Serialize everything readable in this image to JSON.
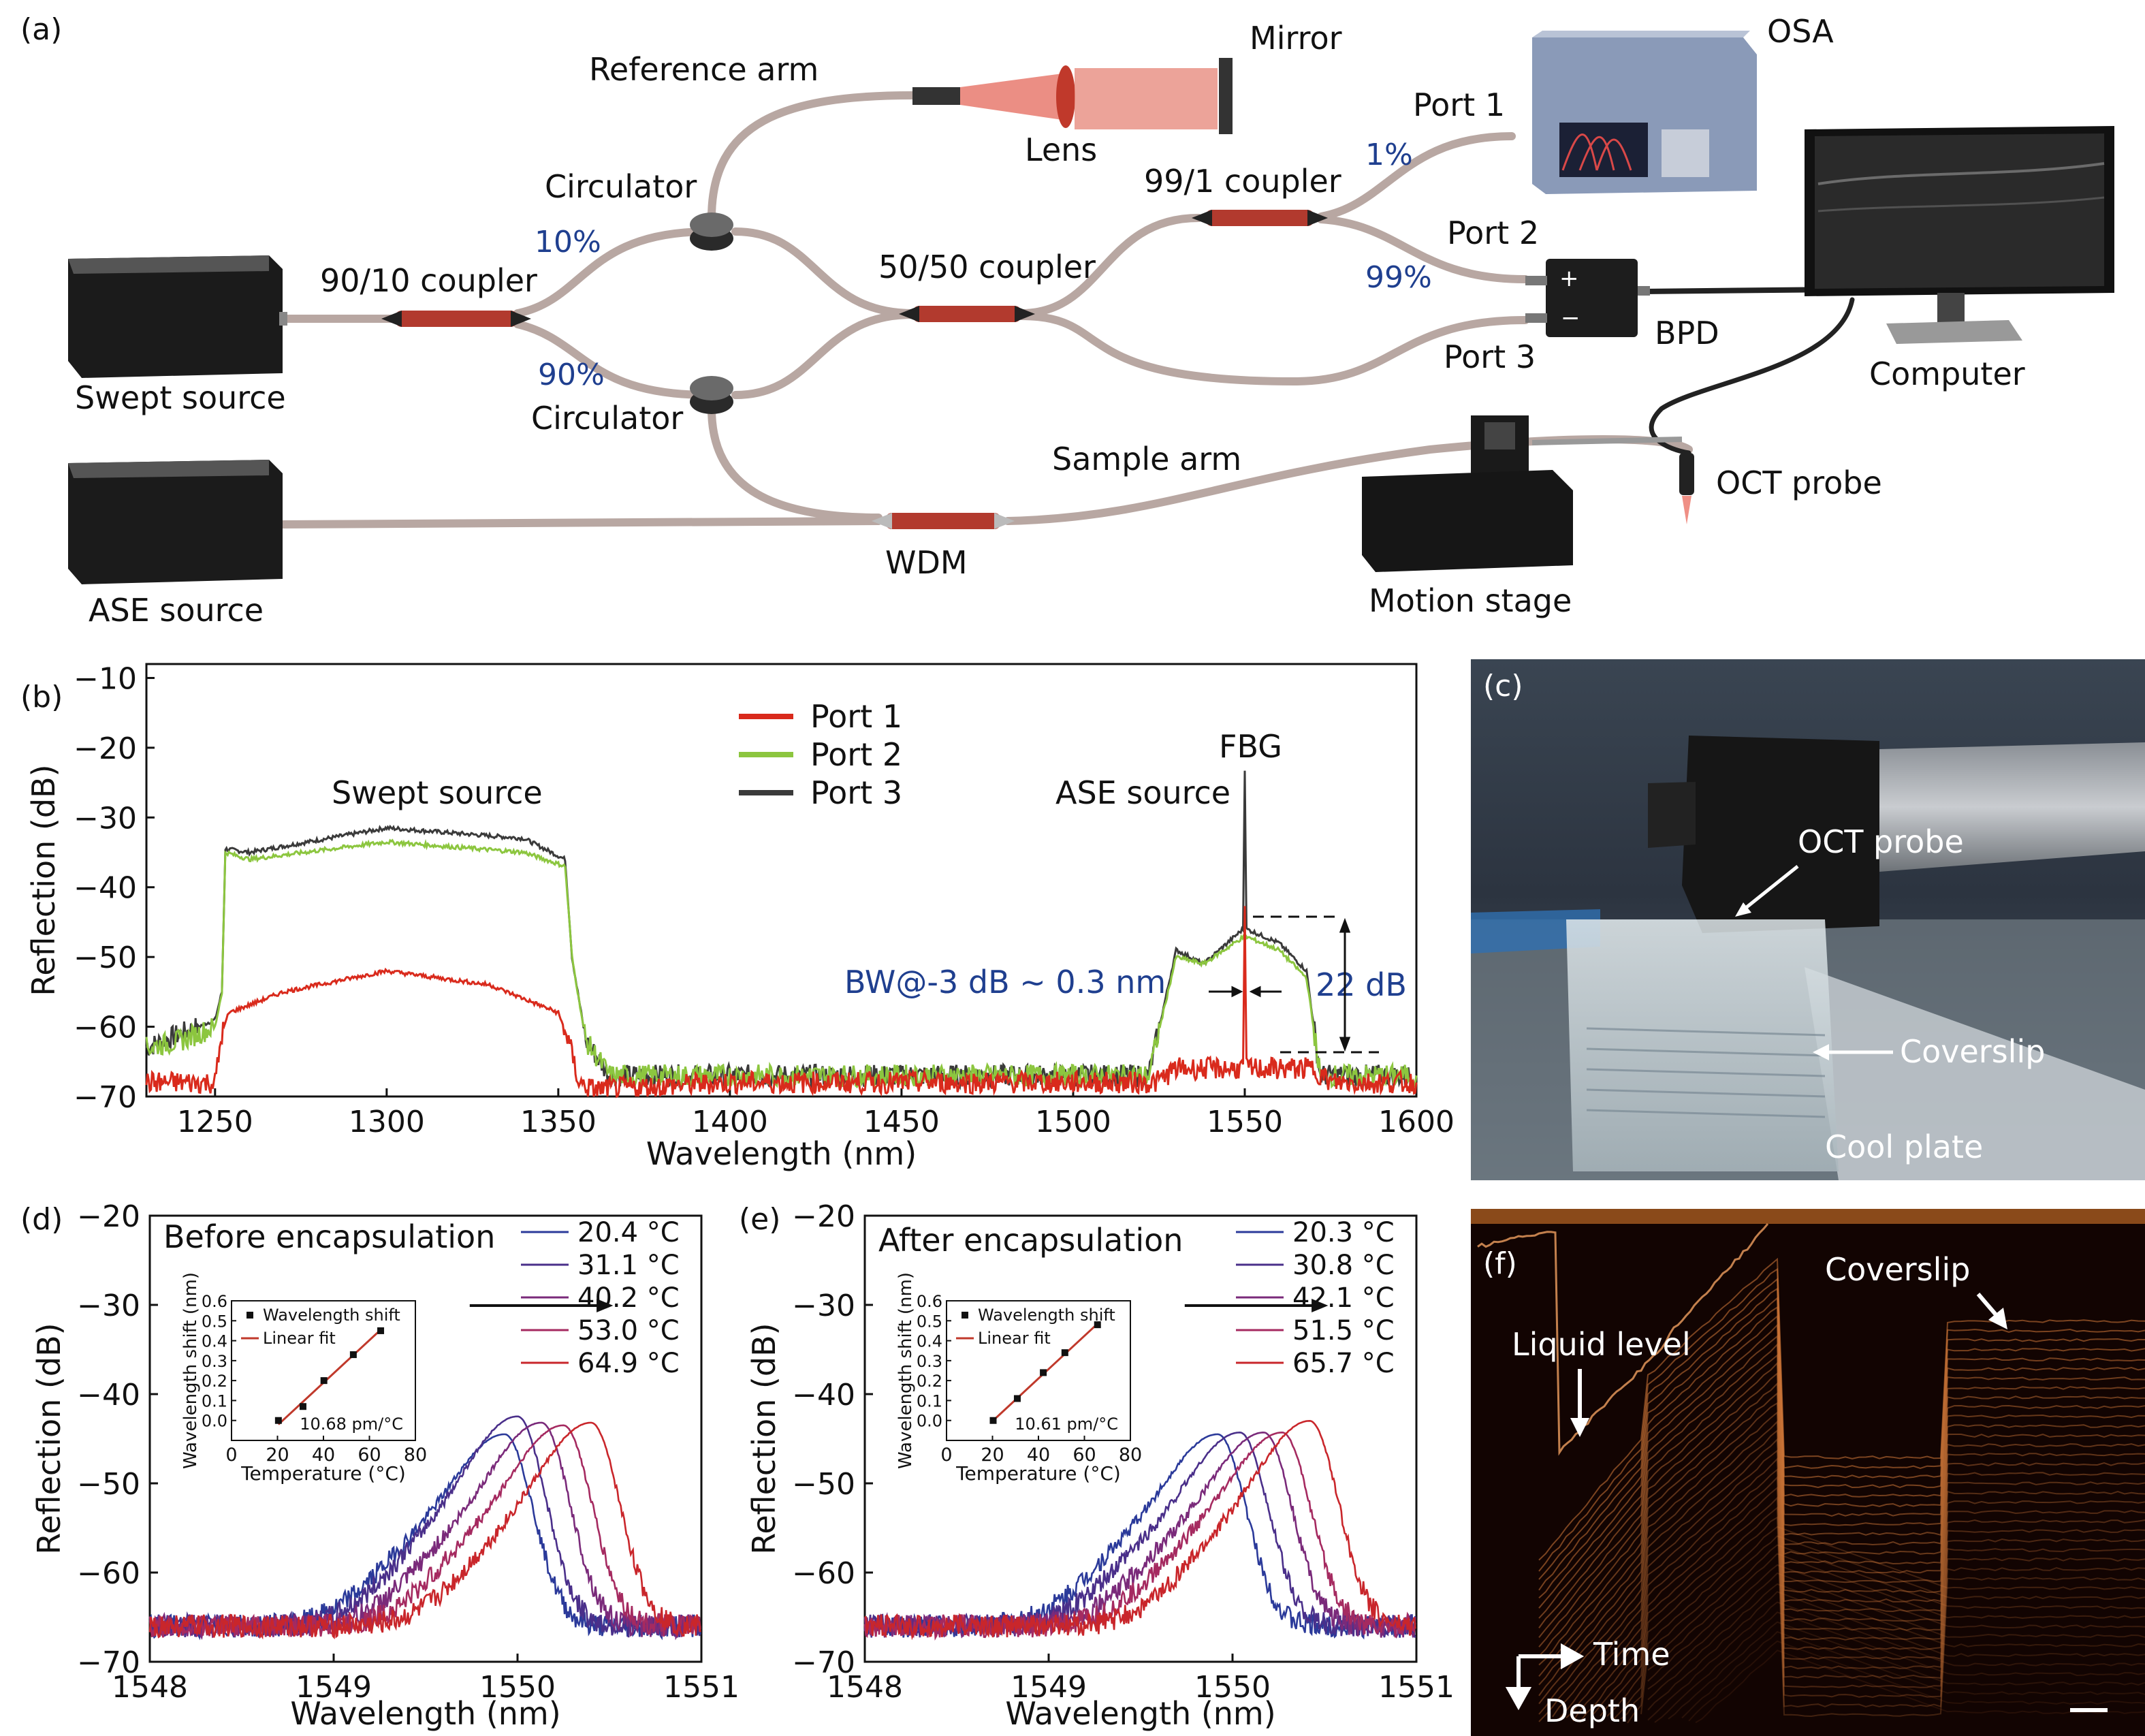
{
  "panel_a": {
    "tag": "(a)",
    "labels": {
      "reference_arm": "Reference arm",
      "mirror": "Mirror",
      "lens": "Lens",
      "circulator_top": "Circulator",
      "circulator_bottom": "Circulator",
      "pct_10": "10%",
      "pct_90": "90%",
      "coupler_90_10": "90/10 coupler",
      "coupler_50_50": "50/50 coupler",
      "coupler_99_1": "99/1 coupler",
      "swept_source": "Swept source",
      "ase_source": "ASE source",
      "wdm": "WDM",
      "sample_arm": "Sample arm",
      "osa": "OSA",
      "port1": "Port 1",
      "port2": "Port 2",
      "port3": "Port 3",
      "pct_1": "1%",
      "pct_99": "99%",
      "bpd": "BPD",
      "computer": "Computer",
      "oct_probe": "OCT probe",
      "motion_stage": "Motion stage"
    }
  },
  "panel_b": {
    "tag": "(b)",
    "annotations": {
      "swept_source": "Swept source",
      "ase_source": "ASE source",
      "fbg": "FBG",
      "bw": "BW@-3 dB ~ 0.3 nm",
      "db22": "22 dB"
    }
  },
  "panel_c": {
    "tag": "(c)",
    "labels": {
      "oct_probe": "OCT probe",
      "coverslip": "Coverslip",
      "cool_plate": "Cool plate"
    }
  },
  "panel_d": {
    "tag": "(d)",
    "title": "Before encapsulation",
    "inset_slope": "10.68 pm/°C"
  },
  "panel_e": {
    "tag": "(e)",
    "title": "After encapsulation",
    "inset_slope": "10.61 pm/°C"
  },
  "panel_f": {
    "tag": "(f)",
    "labels": {
      "liquid_level": "Liquid level",
      "coverslip": "Coverslip",
      "time": "Time",
      "depth": "Depth"
    }
  },
  "colors": {
    "port1": "#d92a1c",
    "port2": "#8cc63f",
    "port3": "#3a3a3a",
    "temp_series": [
      "#2b3a9a",
      "#4a2f8a",
      "#7a2a7a",
      "#a52a60",
      "#c9262b"
    ]
  },
  "chart_data": [
    {
      "id": "b",
      "type": "line",
      "xlabel": "Wavelength (nm)",
      "ylabel": "Reflection (dB)",
      "xlim": [
        1230,
        1600
      ],
      "ylim": [
        -70,
        -8
      ],
      "xticks": [
        1250,
        1300,
        1350,
        1400,
        1450,
        1500,
        1550,
        1600
      ],
      "yticks": [
        -70,
        -60,
        -50,
        -40,
        -30,
        -20,
        -10
      ],
      "legend": "top-center",
      "series": [
        {
          "name": "Port 1",
          "x": [
            1230,
            1240,
            1250,
            1252,
            1254,
            1270,
            1300,
            1330,
            1350,
            1353,
            1356,
            1360,
            1400,
            1450,
            1500,
            1524,
            1530,
            1549.5,
            1550,
            1550.5,
            1570,
            1575,
            1600
          ],
          "y": [
            -68,
            -68,
            -68,
            -61,
            -58,
            -55,
            -52,
            -54,
            -58,
            -62,
            -68,
            -69,
            -68,
            -68,
            -68,
            -68,
            -66,
            -66,
            -43,
            -66,
            -66,
            -68,
            -68
          ]
        },
        {
          "name": "Port 2",
          "x": [
            1230,
            1240,
            1250,
            1252,
            1253,
            1260,
            1300,
            1340,
            1352,
            1354,
            1358,
            1365,
            1400,
            1450,
            1500,
            1522,
            1530,
            1538,
            1550,
            1560,
            1568,
            1572,
            1600
          ],
          "y": [
            -63,
            -62,
            -60,
            -55,
            -35,
            -36,
            -33.5,
            -35,
            -37,
            -50,
            -62,
            -67,
            -67,
            -67,
            -67,
            -67,
            -50,
            -51,
            -47,
            -49,
            -53,
            -67,
            -67
          ]
        },
        {
          "name": "Port 3",
          "x": [
            1230,
            1240,
            1250,
            1252,
            1253,
            1260,
            1300,
            1340,
            1352,
            1354,
            1358,
            1365,
            1400,
            1450,
            1500,
            1522,
            1530,
            1538,
            1549.5,
            1550,
            1550.5,
            1560,
            1568,
            1572,
            1600
          ],
          "y": [
            -63,
            -61,
            -59,
            -55,
            -34.5,
            -35,
            -31.5,
            -33,
            -36,
            -50,
            -62,
            -67,
            -67,
            -67,
            -67,
            -67,
            -49,
            -51,
            -46,
            -23,
            -46,
            -48,
            -52,
            -67,
            -67
          ]
        }
      ]
    },
    {
      "id": "d",
      "type": "line",
      "xlabel": "Wavelength (nm)",
      "ylabel": "Reflection (dB)",
      "xlim": [
        1548,
        1551
      ],
      "ylim": [
        -70,
        -20
      ],
      "xticks": [
        1548,
        1549,
        1550,
        1551
      ],
      "yticks": [
        -70,
        -60,
        -50,
        -40,
        -30,
        -20
      ],
      "legend": "top-right",
      "series": [
        {
          "name": "20.4 °C",
          "peak": 1549.93,
          "peak_db": -44.5
        },
        {
          "name": "31.1 °C",
          "peak": 1550.0,
          "peak_db": -42.5
        },
        {
          "name": "40.2 °C",
          "peak": 1550.13,
          "peak_db": -43.2
        },
        {
          "name": "53.0 °C",
          "peak": 1550.25,
          "peak_db": -43.5
        },
        {
          "name": "64.9 °C",
          "peak": 1550.4,
          "peak_db": -43.2
        }
      ],
      "inset": {
        "xlabel": "Temperature (°C)",
        "ylabel": "Wavelength shift (nm)",
        "xlim": [
          0,
          80
        ],
        "ylim": [
          -0.1,
          0.6
        ],
        "xticks": [
          0,
          20,
          40,
          60,
          80
        ],
        "yticks": [
          0.0,
          0.1,
          0.2,
          0.3,
          0.4,
          0.5,
          0.6
        ],
        "legend_points": "Wavelength shift",
        "legend_line": "Linear fit",
        "x": [
          20.4,
          31.1,
          40.2,
          53.0,
          64.9
        ],
        "y": [
          0.0,
          0.07,
          0.2,
          0.33,
          0.45
        ],
        "fit": [
          [
            20.4,
            -0.02
          ],
          [
            64.9,
            0.455
          ]
        ]
      }
    },
    {
      "id": "e",
      "type": "line",
      "xlabel": "Wavelength (nm)",
      "ylabel": "Reflection (dB)",
      "xlim": [
        1548,
        1551
      ],
      "ylim": [
        -70,
        -20
      ],
      "xticks": [
        1548,
        1549,
        1550,
        1551
      ],
      "yticks": [
        -70,
        -60,
        -50,
        -40,
        -30,
        -20
      ],
      "legend": "top-right",
      "series": [
        {
          "name": "20.3 °C",
          "peak": 1549.92,
          "peak_db": -44.5
        },
        {
          "name": "30.8 °C",
          "peak": 1550.04,
          "peak_db": -44.3
        },
        {
          "name": "42.1 °C",
          "peak": 1550.17,
          "peak_db": -44.3
        },
        {
          "name": "51.5 °C",
          "peak": 1550.27,
          "peak_db": -44.3
        },
        {
          "name": "65.7 °C",
          "peak": 1550.42,
          "peak_db": -43.0
        }
      ],
      "inset": {
        "xlabel": "Temperature (°C)",
        "ylabel": "Wavelength shift (nm)",
        "xlim": [
          0,
          80
        ],
        "ylim": [
          -0.1,
          0.6
        ],
        "xticks": [
          0,
          20,
          40,
          60,
          80
        ],
        "yticks": [
          0.0,
          0.1,
          0.2,
          0.3,
          0.4,
          0.5,
          0.6
        ],
        "legend_points": "Wavelength shift",
        "legend_line": "Linear fit",
        "x": [
          20.3,
          30.8,
          42.1,
          51.5,
          65.7
        ],
        "y": [
          0.0,
          0.11,
          0.24,
          0.34,
          0.48
        ],
        "fit": [
          [
            20.3,
            0.0
          ],
          [
            65.7,
            0.485
          ]
        ]
      }
    }
  ]
}
